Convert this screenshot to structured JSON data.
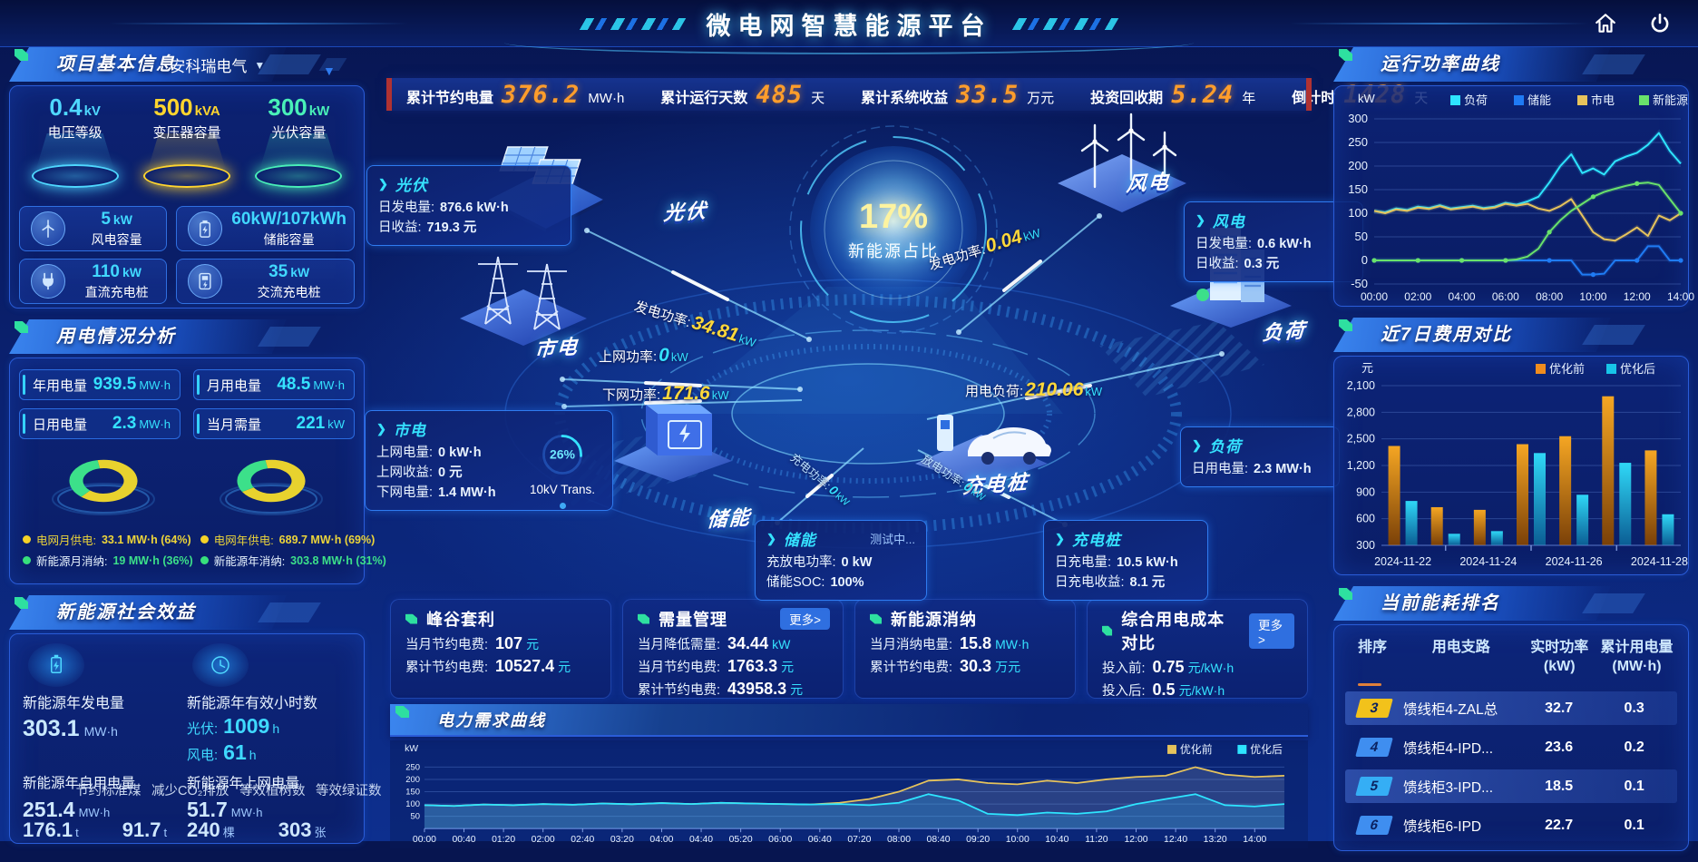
{
  "header": {
    "title": "微电网智慧能源平台"
  },
  "kpi_bar": [
    {
      "label": "累计节约电量",
      "value": "376.2",
      "unit": "MW·h"
    },
    {
      "label": "累计运行天数",
      "value": "485",
      "unit": "天"
    },
    {
      "label": "累计系统收益",
      "value": "33.5",
      "unit": "万元"
    },
    {
      "label": "投资回收期",
      "value": "5.24",
      "unit": "年"
    },
    {
      "label": "倒计时",
      "value": "1428",
      "unit": "天"
    }
  ],
  "project_info": {
    "title": "项目基本信息",
    "company": "安科瑞电气",
    "cones": [
      {
        "value": "0.4",
        "unit": "kV",
        "label": "电压等级",
        "color": "#4fd8ff"
      },
      {
        "value": "500",
        "unit": "kVA",
        "label": "变压器容量",
        "color": "#ffd52e"
      },
      {
        "value": "300",
        "unit": "kW",
        "label": "光伏容量",
        "color": "#49f0b8"
      }
    ],
    "cards": [
      {
        "value": "5",
        "unit": "kW",
        "label": "风电容量",
        "icon": "wind-turbine-icon"
      },
      {
        "value": "60kW/107kWh",
        "unit": "",
        "label": "储能容量",
        "icon": "battery-icon"
      },
      {
        "value": "110",
        "unit": "kW",
        "label": "直流充电桩",
        "icon": "dc-charger-icon"
      },
      {
        "value": "35",
        "unit": "kW",
        "label": "交流充电桩",
        "icon": "ac-charger-icon"
      }
    ]
  },
  "usage_analysis": {
    "title": "用电情况分析",
    "stats": [
      {
        "label": "年用电量",
        "value": "939.5",
        "unit": "MW·h"
      },
      {
        "label": "月用电量",
        "value": "48.5",
        "unit": "MW·h"
      },
      {
        "label": "日用电量",
        "value": "2.3",
        "unit": "MW·h"
      },
      {
        "label": "当月需量",
        "value": "221",
        "unit": "kW"
      }
    ],
    "legends": [
      {
        "dot": "#f5d327",
        "label": "电网月供电:",
        "value": "33.1 MW·h (64%)",
        "label_color": "#ecd43a",
        "value_color": "#ecd43a"
      },
      {
        "dot": "#f5d327",
        "label": "电网年供电:",
        "value": "689.7 MW·h (69%)",
        "label_color": "#ecd43a",
        "value_color": "#ecd43a"
      },
      {
        "dot": "#37e07c",
        "label": "新能源月消纳:",
        "value": "19 MW·h (36%)",
        "label_color": "#e8f4ff",
        "value_color": "#3ce08a"
      },
      {
        "dot": "#37e07c",
        "label": "新能源年消纳:",
        "value": "303.8 MW·h (31%)",
        "label_color": "#e8f4ff",
        "value_color": "#3ce08a"
      }
    ]
  },
  "social_benefits": {
    "title": "新能源社会效益",
    "generation": {
      "label": "新能源年发电量",
      "value": "303.1",
      "unit": "MW·h"
    },
    "hours": {
      "label": "新能源年有效小时数",
      "pv_label": "光伏:",
      "pv_value": "1009",
      "pv_unit": "h",
      "wind_label": "风电:",
      "wind_value": "61",
      "wind_unit": "h"
    },
    "metrics": [
      {
        "label": "新能源年自用电量",
        "value": "251.4",
        "unit": "MW·h"
      },
      {
        "label": "新能源年上网电量",
        "value": "51.7",
        "unit": "MW·h"
      },
      {
        "label": "节约标准煤",
        "value": "176.1",
        "unit": "t"
      },
      {
        "label": "减少CO₂排放",
        "value": "91.7",
        "unit": "t"
      },
      {
        "label": "等效植树数",
        "value": "240",
        "unit": "棵"
      },
      {
        "label": "等效绿证数",
        "value": "303",
        "unit": "张"
      }
    ]
  },
  "stage": {
    "share_pct": "17%",
    "share_label": "新能源占比",
    "nodes": {
      "pv": "光伏",
      "grid": "市电",
      "storage": "储能",
      "wind": "风电",
      "load": "负荷",
      "charger": "充电桩"
    },
    "pv_box": {
      "title": "光伏",
      "rows": [
        {
          "label": "日发电量:",
          "value": "876.6 kW·h"
        },
        {
          "label": "日收益:",
          "value": "719.3 元"
        }
      ]
    },
    "wind_box": {
      "title": "风电",
      "rows": [
        {
          "label": "日发电量:",
          "value": "0.6 kW·h"
        },
        {
          "label": "日收益:",
          "value": "0.3 元"
        }
      ]
    },
    "grid_box": {
      "title": "市电",
      "rows": [
        {
          "label": "上网电量:",
          "value": "0 kW·h"
        },
        {
          "label": "上网收益:",
          "value": "0 元"
        },
        {
          "label": "下网电量:",
          "value": "1.4 MW·h"
        }
      ],
      "trans_pct": "26%",
      "trans_label": "10kV Trans."
    },
    "load_box": {
      "title": "负荷",
      "rows": [
        {
          "label": "日用电量:",
          "value": "2.3 MW·h"
        }
      ]
    },
    "storage_box": {
      "title": "储能",
      "status": "测试中...",
      "rows": [
        {
          "label": "充放电功率:",
          "value": "0 kW"
        },
        {
          "label": "储能SOC:",
          "value": "100%"
        }
      ]
    },
    "charger_box": {
      "title": "充电桩",
      "rows": [
        {
          "label": "日充电量:",
          "value": "10.5 kW·h"
        },
        {
          "label": "日充电收益:",
          "value": "8.1 元"
        }
      ]
    },
    "flows": {
      "pv_power": {
        "label": "发电功率:",
        "value": "34.81",
        "unit": "kW"
      },
      "feed_in": {
        "label": "上网功率:",
        "value": "0",
        "unit": "kW"
      },
      "draw_down": {
        "label": "下网功率:",
        "value": "171.6",
        "unit": "kW"
      },
      "wind_power": {
        "label": "发电功率:",
        "value": "0.04",
        "unit": "kW"
      },
      "load_power": {
        "label": "用电负荷:",
        "value": "210.06",
        "unit": "kW"
      },
      "charge_power": {
        "label": "充电功率:",
        "value": "0",
        "unit": "kW"
      },
      "discharge_power": {
        "label": "放电功率:",
        "value": "0",
        "unit": "kW"
      }
    }
  },
  "strategy_cards": [
    {
      "title": "峰谷套利",
      "more": null,
      "rows": [
        {
          "label": "当月节约电费:",
          "value": "107",
          "unit": "元"
        },
        {
          "label": "累计节约电费:",
          "value": "10527.4",
          "unit": "元"
        }
      ]
    },
    {
      "title": "需量管理",
      "more": "更多>",
      "rows": [
        {
          "label": "当月降低需量:",
          "value": "34.44",
          "unit": "kW"
        },
        {
          "label": "当月节约电费:",
          "value": "1763.3",
          "unit": "元"
        },
        {
          "label": "累计节约电费:",
          "value": "43958.3",
          "unit": "元"
        }
      ]
    },
    {
      "title": "新能源消纳",
      "more": null,
      "rows": [
        {
          "label": "当月消纳电量:",
          "value": "15.8",
          "unit": "MW·h"
        },
        {
          "label": "累计节约电费:",
          "value": "30.3",
          "unit": "万元"
        }
      ]
    },
    {
      "title": "综合用电成本对比",
      "more": "更多>",
      "rows": [
        {
          "label": "投入前:",
          "value": "0.75",
          "unit": "元/kW·h"
        },
        {
          "label": "投入后:",
          "value": "0.5",
          "unit": "元/kW·h"
        }
      ]
    }
  ],
  "ranking": {
    "title": "当前能耗排名",
    "columns": [
      [
        "排序"
      ],
      [
        "用电支路"
      ],
      [
        "实时功率",
        "(kW)"
      ],
      [
        "累计用电量",
        "(MW·h)"
      ]
    ],
    "rows": [
      {
        "rank": "3",
        "branch": "馈线柜4-ZAL总",
        "power": "32.7",
        "energy": "0.3",
        "badge": "#f2c21b",
        "highlight": true
      },
      {
        "rank": "4",
        "branch": "馈线柜4-IPD...",
        "power": "23.6",
        "energy": "0.2",
        "badge": "#3f8ef0",
        "highlight": false
      },
      {
        "rank": "5",
        "branch": "馈线柜3-IPD...",
        "power": "18.5",
        "energy": "0.1",
        "badge": "#35aef5",
        "highlight": true
      },
      {
        "rank": "6",
        "branch": "馈线柜6-IPD",
        "power": "22.7",
        "energy": "0.1",
        "badge": "#3f8ef0",
        "highlight": false
      }
    ]
  },
  "chart_data": [
    {
      "id": "power-curve",
      "type": "line",
      "title": "运行功率曲线",
      "ylabel": "kW",
      "ylim": [
        -50,
        300
      ],
      "ytick_step": 50,
      "x_hours_step": 0.5,
      "xticks": [
        "00:00",
        "02:00",
        "04:00",
        "06:00",
        "08:00",
        "10:00",
        "12:00",
        "14:00"
      ],
      "legend_position": "top",
      "grid": true,
      "series": [
        {
          "name": "负荷",
          "color": "#2ee5ff",
          "values": [
            105,
            102,
            110,
            107,
            114,
            111,
            117,
            110,
            113,
            116,
            111,
            114,
            122,
            118,
            125,
            135,
            165,
            200,
            225,
            185,
            195,
            182,
            210,
            220,
            228,
            245,
            270,
            232,
            205
          ]
        },
        {
          "name": "储能",
          "color": "#1f7bf4",
          "values": [
            0,
            0,
            0,
            0,
            0,
            0,
            0,
            0,
            0,
            0,
            0,
            0,
            0,
            0,
            0,
            0,
            0,
            0,
            0,
            -30,
            -30,
            -28,
            0,
            0,
            0,
            30,
            30,
            0,
            0
          ]
        },
        {
          "name": "市电",
          "color": "#e6c35c",
          "values": [
            105,
            100,
            108,
            105,
            112,
            109,
            115,
            108,
            111,
            114,
            109,
            112,
            120,
            116,
            120,
            110,
            105,
            115,
            130,
            95,
            60,
            45,
            42,
            55,
            70,
            52,
            95,
            85,
            100
          ]
        },
        {
          "name": "新能源",
          "color": "#69e26b",
          "values": [
            0,
            0,
            0,
            0,
            0,
            0,
            0,
            0,
            0,
            0,
            0,
            0,
            0,
            2,
            8,
            25,
            60,
            85,
            105,
            120,
            135,
            145,
            152,
            158,
            163,
            165,
            160,
            130,
            100
          ]
        }
      ]
    },
    {
      "id": "cost-compare",
      "type": "bar",
      "title": "近7日费用对比",
      "ylabel": "元",
      "ylim": [
        300,
        2100
      ],
      "ytick_step": 300,
      "grid": true,
      "legend_position": "top",
      "categories": [
        "2024-11-22",
        "2024-11-23",
        "2024-11-24",
        "2024-11-25",
        "2024-11-26",
        "2024-11-27",
        "2024-11-28"
      ],
      "xticks_shown": [
        "2024-11-22",
        "2024-11-24",
        "2024-11-26",
        "2024-11-28"
      ],
      "series": [
        {
          "name": "优化前",
          "color": "#f08c1e",
          "values": [
            1420,
            730,
            700,
            1440,
            1530,
            1980,
            1370
          ]
        },
        {
          "name": "优化后",
          "color": "#17c4e8",
          "values": [
            800,
            430,
            460,
            1340,
            870,
            1230,
            650
          ]
        }
      ]
    },
    {
      "id": "demand-curve",
      "type": "area",
      "title": "电力需求曲线",
      "ylabel": "kW",
      "ylim": [
        0,
        300
      ],
      "yticks": [
        50,
        100,
        150,
        200,
        250
      ],
      "x_minutes_step": 30,
      "legend_position": "top-right",
      "xticks": [
        "00:00",
        "00:40",
        "01:20",
        "02:00",
        "02:40",
        "03:20",
        "04:00",
        "04:40",
        "05:20",
        "06:00",
        "06:40",
        "07:20",
        "08:00",
        "08:40",
        "09:20",
        "10:00",
        "10:40",
        "11:20",
        "12:00",
        "12:40",
        "13:20",
        "14:00"
      ],
      "series": [
        {
          "name": "优化前",
          "color": "#e6c35c",
          "values": [
            95,
            92,
            98,
            95,
            100,
            97,
            102,
            99,
            104,
            100,
            105,
            102,
            100,
            98,
            105,
            120,
            150,
            195,
            200,
            185,
            180,
            195,
            185,
            200,
            210,
            215,
            250,
            220,
            210,
            215
          ]
        },
        {
          "name": "优化后",
          "color": "#2ee5ff",
          "values": [
            95,
            92,
            98,
            95,
            100,
            97,
            102,
            99,
            104,
            100,
            105,
            102,
            100,
            98,
            100,
            95,
            105,
            140,
            115,
            60,
            55,
            65,
            60,
            70,
            100,
            120,
            140,
            95,
            90,
            100
          ]
        }
      ]
    },
    {
      "id": "month-consumption",
      "type": "pie",
      "slices": [
        {
          "name": "电网月供电",
          "pct": 64,
          "color": "#e8d22e"
        },
        {
          "name": "新能源月消纳",
          "pct": 36,
          "color": "#3ce08a"
        }
      ]
    },
    {
      "id": "year-consumption",
      "type": "pie",
      "slices": [
        {
          "name": "电网年供电",
          "pct": 69,
          "color": "#e8d22e"
        },
        {
          "name": "新能源年消纳",
          "pct": 31,
          "color": "#3ce08a"
        }
      ]
    }
  ]
}
